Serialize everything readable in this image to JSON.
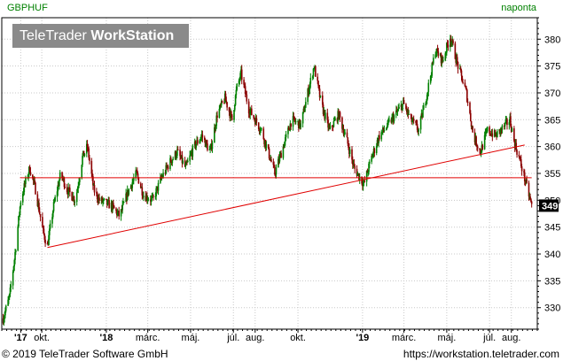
{
  "header": {
    "symbol": "GBPHUF",
    "period": "naponta",
    "logo_light": "TeleTrader ",
    "logo_bold": "WorkStation"
  },
  "footer": {
    "copyright": "© 2019 TeleTrader Software GmbH",
    "url": "https://workstation.teletrader.com"
  },
  "colors": {
    "up": "#008000",
    "down": "#8b0000",
    "trendline": "#e00000",
    "grid": "#c8c8c8",
    "price_label_bg": "#000000"
  },
  "chart_data": {
    "type": "candlestick",
    "x_tick_labels": [
      {
        "label": "'17",
        "date": "2017-09-01",
        "bold": true
      },
      {
        "label": "okt.",
        "date": "2017-10-01",
        "bold": false
      },
      {
        "label": "'18",
        "date": "2018-01-01",
        "bold": true
      },
      {
        "label": "márc.",
        "date": "2018-03-01",
        "bold": false
      },
      {
        "label": "máj.",
        "date": "2018-05-01",
        "bold": false
      },
      {
        "label": "júl.",
        "date": "2018-07-01",
        "bold": false
      },
      {
        "label": "aug.",
        "date": "2018-08-01",
        "bold": false
      },
      {
        "label": "okt.",
        "date": "2018-10-01",
        "bold": false
      },
      {
        "label": "'19",
        "date": "2019-01-01",
        "bold": true
      },
      {
        "label": "márc.",
        "date": "2019-03-01",
        "bold": false
      },
      {
        "label": "máj.",
        "date": "2019-05-01",
        "bold": false
      },
      {
        "label": "júl.",
        "date": "2019-07-01",
        "bold": false
      },
      {
        "label": "aug.",
        "date": "2019-08-01",
        "bold": false
      }
    ],
    "y_ticks": [
      330,
      335,
      340,
      345,
      350,
      355,
      360,
      365,
      370,
      375,
      380
    ],
    "ylim": [
      326,
      384
    ],
    "xlim": [
      "2017-08-05",
      "2019-09-07"
    ],
    "last_price": "349",
    "last_value": 349,
    "anchors": [
      [
        "2017-08-07",
        328.0
      ],
      [
        "2017-08-16",
        332.0
      ],
      [
        "2017-08-23",
        339.0
      ],
      [
        "2017-09-01",
        350.0
      ],
      [
        "2017-09-07",
        353.0
      ],
      [
        "2017-09-14",
        356.0
      ],
      [
        "2017-09-22",
        352.0
      ],
      [
        "2017-10-03",
        344.0
      ],
      [
        "2017-10-09",
        341.5
      ],
      [
        "2017-10-18",
        349.0
      ],
      [
        "2017-10-28",
        355.0
      ],
      [
        "2017-11-06",
        352.0
      ],
      [
        "2017-11-18",
        350.0
      ],
      [
        "2017-11-28",
        358.0
      ],
      [
        "2017-12-05",
        360.0
      ],
      [
        "2017-12-14",
        352.0
      ],
      [
        "2017-12-22",
        350.0
      ],
      [
        "2018-01-08",
        349.0
      ],
      [
        "2018-01-20",
        347.0
      ],
      [
        "2018-02-02",
        352.0
      ],
      [
        "2018-02-13",
        355.0
      ],
      [
        "2018-02-23",
        351.0
      ],
      [
        "2018-03-08",
        350.0
      ],
      [
        "2018-03-20",
        354.0
      ],
      [
        "2018-04-01",
        357.0
      ],
      [
        "2018-04-12",
        359.0
      ],
      [
        "2018-04-24",
        356.0
      ],
      [
        "2018-05-06",
        360.0
      ],
      [
        "2018-05-17",
        362.0
      ],
      [
        "2018-05-29",
        359.0
      ],
      [
        "2018-06-08",
        366.0
      ],
      [
        "2018-06-19",
        369.0
      ],
      [
        "2018-06-29",
        365.0
      ],
      [
        "2018-07-06",
        371.0
      ],
      [
        "2018-07-12",
        373.5
      ],
      [
        "2018-07-23",
        367.0
      ],
      [
        "2018-08-01",
        365.0
      ],
      [
        "2018-08-10",
        363.0
      ],
      [
        "2018-08-22",
        358.0
      ],
      [
        "2018-08-29",
        355.0
      ],
      [
        "2018-09-10",
        360.0
      ],
      [
        "2018-09-22",
        365.0
      ],
      [
        "2018-10-05",
        364.0
      ],
      [
        "2018-10-15",
        370.0
      ],
      [
        "2018-10-24",
        375.0
      ],
      [
        "2018-11-03",
        368.0
      ],
      [
        "2018-11-15",
        363.0
      ],
      [
        "2018-11-28",
        366.0
      ],
      [
        "2018-12-10",
        361.0
      ],
      [
        "2018-12-20",
        356.0
      ],
      [
        "2019-01-03",
        353.0
      ],
      [
        "2019-01-14",
        358.0
      ],
      [
        "2019-01-25",
        362.0
      ],
      [
        "2019-02-06",
        364.0
      ],
      [
        "2019-02-17",
        366.0
      ],
      [
        "2019-02-28",
        368.0
      ],
      [
        "2019-03-11",
        365.0
      ],
      [
        "2019-03-22",
        363.0
      ],
      [
        "2019-04-03",
        370.0
      ],
      [
        "2019-04-15",
        378.0
      ],
      [
        "2019-04-25",
        376.0
      ],
      [
        "2019-05-06",
        380.5
      ],
      [
        "2019-05-17",
        375.0
      ],
      [
        "2019-05-29",
        370.0
      ],
      [
        "2019-06-08",
        362.0
      ],
      [
        "2019-06-18",
        359.0
      ],
      [
        "2019-06-28",
        363.0
      ],
      [
        "2019-07-10",
        362.0
      ],
      [
        "2019-07-20",
        363.5
      ],
      [
        "2019-07-30",
        365.0
      ],
      [
        "2019-08-05",
        361.0
      ],
      [
        "2019-08-14",
        357.0
      ],
      [
        "2019-08-22",
        353.0
      ],
      [
        "2019-08-30",
        349.0
      ]
    ],
    "trendlines": [
      {
        "name": "support",
        "from": [
          "2017-10-09",
          341.2
        ],
        "to": [
          "2019-08-20",
          360.3
        ]
      },
      {
        "name": "horizontal",
        "from": [
          "2017-08-31",
          354.2
        ],
        "to": [
          "2019-08-30",
          354.2
        ]
      }
    ]
  }
}
